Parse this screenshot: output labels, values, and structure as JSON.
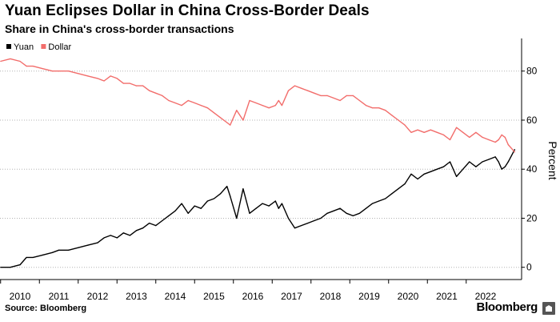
{
  "header": {
    "title": "Yuan Eclipses Dollar in China Cross-Border Deals",
    "subtitle": "Share in China's cross-border transactions"
  },
  "footer": {
    "source": "Source: Bloomberg",
    "brand": "Bloomberg"
  },
  "colors": {
    "yuan": "#000000",
    "dollar": "#f26d6b",
    "grid": "#b3b3b3",
    "axis": "#000000"
  },
  "chart_data": {
    "type": "line",
    "title": "Yuan Eclipses Dollar in China Cross-Border Deals",
    "subtitle": "Share in China's cross-border transactions",
    "ylabel": "Percent",
    "xlabel": "",
    "ylim": [
      -5,
      92
    ],
    "y_ticks": [
      0,
      20,
      40,
      60,
      80
    ],
    "x_ticks": [
      "2010",
      "2011",
      "2012",
      "2013",
      "2014",
      "2015",
      "2016",
      "2017",
      "2018",
      "2019",
      "2020",
      "2021",
      "2022"
    ],
    "x_range": [
      "2009-07",
      "2022-10"
    ],
    "grid": "horizontal dotted",
    "legend_position": "top-left",
    "y_axis_position": "right",
    "series": [
      {
        "name": "Yuan",
        "color": "#000000",
        "points": [
          [
            "2009-07",
            0
          ],
          [
            "2009-10",
            0
          ],
          [
            "2010-01",
            1
          ],
          [
            "2010-03",
            4
          ],
          [
            "2010-05",
            4
          ],
          [
            "2010-08",
            5
          ],
          [
            "2010-11",
            6
          ],
          [
            "2011-01",
            7
          ],
          [
            "2011-04",
            7
          ],
          [
            "2011-07",
            8
          ],
          [
            "2011-10",
            9
          ],
          [
            "2012-01",
            10
          ],
          [
            "2012-03",
            12
          ],
          [
            "2012-05",
            13
          ],
          [
            "2012-07",
            12
          ],
          [
            "2012-09",
            14
          ],
          [
            "2012-11",
            13
          ],
          [
            "2013-01",
            15
          ],
          [
            "2013-03",
            16
          ],
          [
            "2013-05",
            18
          ],
          [
            "2013-07",
            17
          ],
          [
            "2013-09",
            19
          ],
          [
            "2013-11",
            21
          ],
          [
            "2014-01",
            23
          ],
          [
            "2014-03",
            26
          ],
          [
            "2014-05",
            22
          ],
          [
            "2014-07",
            25
          ],
          [
            "2014-09",
            24
          ],
          [
            "2014-11",
            27
          ],
          [
            "2015-01",
            28
          ],
          [
            "2015-03",
            30
          ],
          [
            "2015-05",
            33
          ],
          [
            "2015-06",
            29
          ],
          [
            "2015-08",
            20
          ],
          [
            "2015-10",
            32
          ],
          [
            "2015-12",
            22
          ],
          [
            "2016-02",
            24
          ],
          [
            "2016-04",
            26
          ],
          [
            "2016-06",
            25
          ],
          [
            "2016-08",
            27
          ],
          [
            "2016-09",
            24
          ],
          [
            "2016-10",
            26
          ],
          [
            "2016-12",
            20
          ],
          [
            "2017-02",
            16
          ],
          [
            "2017-04",
            17
          ],
          [
            "2017-06",
            18
          ],
          [
            "2017-08",
            19
          ],
          [
            "2017-10",
            20
          ],
          [
            "2017-12",
            22
          ],
          [
            "2018-02",
            23
          ],
          [
            "2018-04",
            24
          ],
          [
            "2018-06",
            22
          ],
          [
            "2018-08",
            21
          ],
          [
            "2018-10",
            22
          ],
          [
            "2018-12",
            24
          ],
          [
            "2019-02",
            26
          ],
          [
            "2019-04",
            27
          ],
          [
            "2019-06",
            28
          ],
          [
            "2019-08",
            30
          ],
          [
            "2019-10",
            32
          ],
          [
            "2019-12",
            34
          ],
          [
            "2020-02",
            38
          ],
          [
            "2020-04",
            36
          ],
          [
            "2020-06",
            38
          ],
          [
            "2020-08",
            39
          ],
          [
            "2020-10",
            40
          ],
          [
            "2020-12",
            41
          ],
          [
            "2021-02",
            43
          ],
          [
            "2021-04",
            37
          ],
          [
            "2021-06",
            40
          ],
          [
            "2021-08",
            43
          ],
          [
            "2021-10",
            41
          ],
          [
            "2021-12",
            43
          ],
          [
            "2022-02",
            44
          ],
          [
            "2022-04",
            45
          ],
          [
            "2022-05",
            43
          ],
          [
            "2022-06",
            40
          ],
          [
            "2022-07",
            41
          ],
          [
            "2022-08",
            43
          ],
          [
            "2022-10",
            48
          ]
        ]
      },
      {
        "name": "Dollar",
        "color": "#f26d6b",
        "points": [
          [
            "2009-07",
            84
          ],
          [
            "2009-10",
            85
          ],
          [
            "2010-01",
            84
          ],
          [
            "2010-03",
            82
          ],
          [
            "2010-05",
            82
          ],
          [
            "2010-08",
            81
          ],
          [
            "2010-11",
            80
          ],
          [
            "2011-01",
            80
          ],
          [
            "2011-04",
            80
          ],
          [
            "2011-07",
            79
          ],
          [
            "2011-10",
            78
          ],
          [
            "2012-01",
            77
          ],
          [
            "2012-03",
            76
          ],
          [
            "2012-05",
            78
          ],
          [
            "2012-07",
            77
          ],
          [
            "2012-09",
            75
          ],
          [
            "2012-11",
            75
          ],
          [
            "2013-01",
            74
          ],
          [
            "2013-03",
            74
          ],
          [
            "2013-05",
            72
          ],
          [
            "2013-07",
            71
          ],
          [
            "2013-09",
            70
          ],
          [
            "2013-11",
            68
          ],
          [
            "2014-01",
            67
          ],
          [
            "2014-03",
            66
          ],
          [
            "2014-05",
            68
          ],
          [
            "2014-07",
            67
          ],
          [
            "2014-09",
            66
          ],
          [
            "2014-11",
            65
          ],
          [
            "2015-01",
            63
          ],
          [
            "2015-03",
            61
          ],
          [
            "2015-05",
            59
          ],
          [
            "2015-06",
            58
          ],
          [
            "2015-08",
            64
          ],
          [
            "2015-10",
            60
          ],
          [
            "2015-12",
            68
          ],
          [
            "2016-02",
            67
          ],
          [
            "2016-04",
            66
          ],
          [
            "2016-06",
            65
          ],
          [
            "2016-08",
            66
          ],
          [
            "2016-09",
            68
          ],
          [
            "2016-10",
            66
          ],
          [
            "2016-12",
            72
          ],
          [
            "2017-02",
            74
          ],
          [
            "2017-04",
            73
          ],
          [
            "2017-06",
            72
          ],
          [
            "2017-08",
            71
          ],
          [
            "2017-10",
            70
          ],
          [
            "2017-12",
            70
          ],
          [
            "2018-02",
            69
          ],
          [
            "2018-04",
            68
          ],
          [
            "2018-06",
            70
          ],
          [
            "2018-08",
            70
          ],
          [
            "2018-10",
            68
          ],
          [
            "2018-12",
            66
          ],
          [
            "2019-02",
            65
          ],
          [
            "2019-04",
            65
          ],
          [
            "2019-06",
            64
          ],
          [
            "2019-08",
            62
          ],
          [
            "2019-10",
            60
          ],
          [
            "2019-12",
            58
          ],
          [
            "2020-02",
            55
          ],
          [
            "2020-04",
            56
          ],
          [
            "2020-06",
            55
          ],
          [
            "2020-08",
            56
          ],
          [
            "2020-10",
            55
          ],
          [
            "2020-12",
            54
          ],
          [
            "2021-02",
            52
          ],
          [
            "2021-04",
            57
          ],
          [
            "2021-06",
            55
          ],
          [
            "2021-08",
            53
          ],
          [
            "2021-10",
            55
          ],
          [
            "2021-12",
            53
          ],
          [
            "2022-02",
            52
          ],
          [
            "2022-04",
            51
          ],
          [
            "2022-05",
            52
          ],
          [
            "2022-06",
            54
          ],
          [
            "2022-07",
            53
          ],
          [
            "2022-08",
            50
          ],
          [
            "2022-10",
            47
          ]
        ]
      }
    ]
  }
}
